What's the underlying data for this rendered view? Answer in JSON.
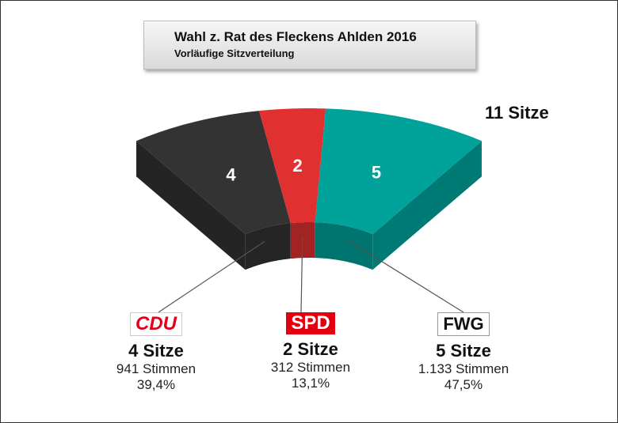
{
  "title": "Wahl z. Rat des Fleckens Ahlden 2016",
  "subtitle": "Vorläufige Sitzverteilung",
  "total_label": "11 Sitze",
  "parties": [
    {
      "key": "cdu",
      "badge": "CDU",
      "seats_label": "4 Sitze",
      "votes": "941 Stimmen",
      "percent": "39,4%",
      "color": "#333333"
    },
    {
      "key": "spd",
      "badge": "SPD",
      "seats_label": "2 Sitze",
      "votes": "312 Stimmen",
      "percent": "13,1%",
      "color": "#E03030"
    },
    {
      "key": "fwg",
      "badge": "FWG",
      "seats_label": "5 Sitze",
      "votes": "1.133 Stimmen",
      "percent": "47,5%",
      "color": "#00A29A"
    }
  ],
  "chart_data": {
    "type": "pie",
    "title": "Wahl z. Rat des Fleckens Ahlden 2016",
    "subtitle": "Vorläufige Sitzverteilung",
    "total": 11,
    "categories": [
      "CDU",
      "SPD",
      "FWG"
    ],
    "values": [
      4,
      2,
      5
    ],
    "votes": [
      941,
      312,
      1133
    ],
    "percent": [
      39.4,
      13.1,
      47.5
    ],
    "colors": [
      "#333333",
      "#E03030",
      "#00A29A"
    ],
    "labels": [
      "4",
      "2",
      "5"
    ]
  }
}
